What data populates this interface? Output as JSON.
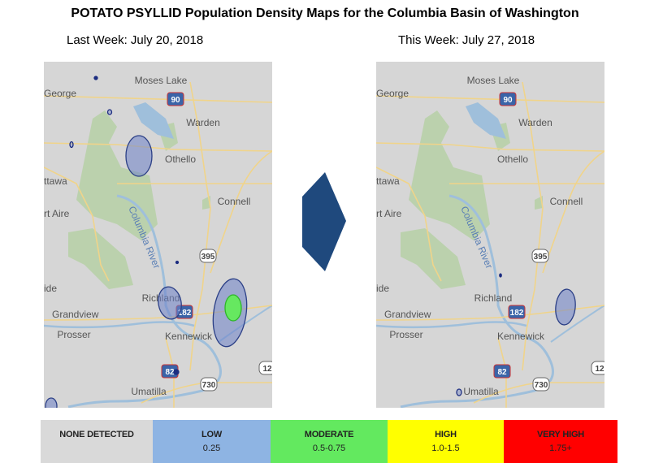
{
  "title": "POTATO PSYLLID Population Density Maps for the Columbia Basin of Washington",
  "maps": [
    {
      "caption": "Last Week:  July 20, 2018"
    },
    {
      "caption": "This Week:  July 27, 2018"
    }
  ],
  "place_labels": [
    "Moses Lake",
    "George",
    "Warden",
    "Othello",
    "ttawa",
    "rt Aire",
    "Connell",
    "Columbia River",
    "ide",
    "Richland",
    "Grandview",
    "Prosser",
    "Kennewick",
    "Umatilla"
  ],
  "highway_shields": [
    "90",
    "395",
    "182",
    "82",
    "730",
    "12"
  ],
  "legend": [
    {
      "label": "NONE DETECTED",
      "range": "",
      "color": "#d9d9d9"
    },
    {
      "label": "LOW",
      "range": "0.25",
      "color": "#8eb4e3"
    },
    {
      "label": "MODERATE",
      "range": "0.5-0.75",
      "color": "#63e95f"
    },
    {
      "label": "HIGH",
      "range": "1.0-1.5",
      "color": "#ffff00"
    },
    {
      "label": "VERY HIGH",
      "range": "1.75+",
      "color": "#ff0000"
    }
  ],
  "arrow_color": "#1f497d"
}
